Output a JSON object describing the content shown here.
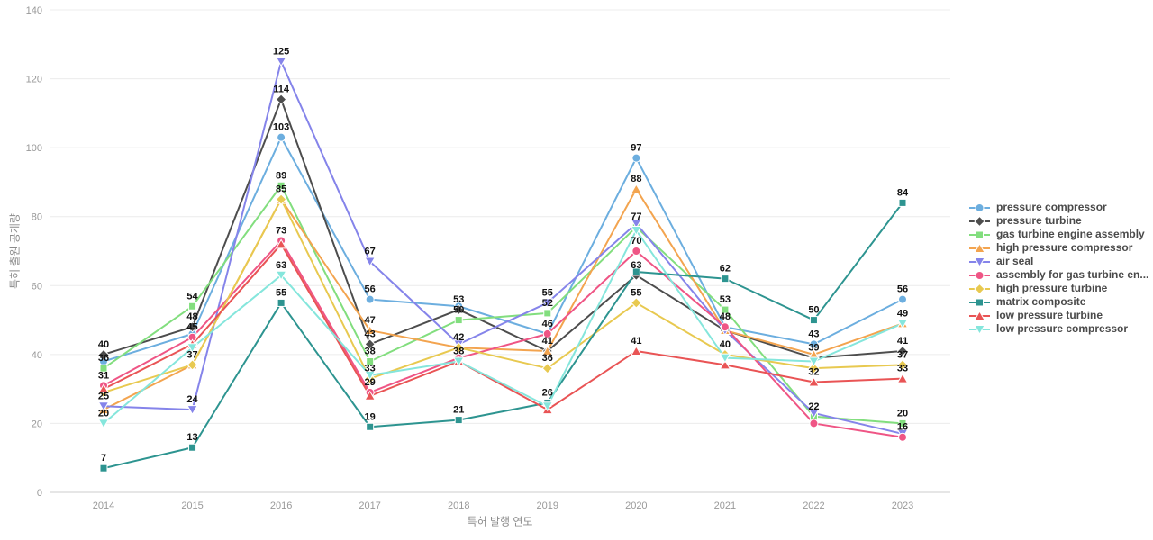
{
  "page": {
    "background": "#ffffff"
  },
  "chart_data": {
    "type": "line",
    "title": "",
    "xlabel": "특허 발행 연도",
    "ylabel": "특허 출원 공개량",
    "categories": [
      "2014",
      "2015",
      "2016",
      "2017",
      "2018",
      "2019",
      "2020",
      "2021",
      "2022",
      "2023"
    ],
    "ylim": [
      0,
      140
    ],
    "y_ticks": [
      0,
      20,
      40,
      60,
      80,
      100,
      120,
      140
    ],
    "grid": true,
    "legend_position": "right",
    "label_color": "#111111",
    "grid_color": "#ececec",
    "axis_line_color": "#cccccc",
    "tick_label_color": "#999999",
    "series": [
      {
        "name": "pressure compressor",
        "color": "#6CAEDF",
        "symbol": "circle",
        "values": [
          38,
          46,
          103,
          56,
          54,
          46,
          97,
          48,
          43,
          56
        ],
        "label_show": [
          0,
          0,
          1,
          1,
          0,
          0,
          1,
          0,
          1,
          1
        ]
      },
      {
        "name": "pressure turbine",
        "color": "#4D4D4D",
        "symbol": "diamond",
        "values": [
          40,
          48,
          114,
          43,
          53,
          41,
          63,
          47,
          39,
          41
        ],
        "label_show": [
          1,
          1,
          1,
          1,
          1,
          1,
          1,
          0,
          1,
          1
        ]
      },
      {
        "name": "gas turbine engine assembly",
        "color": "#82DE7E",
        "symbol": "square",
        "values": [
          36,
          54,
          89,
          38,
          50,
          52,
          77,
          53,
          22,
          20
        ],
        "label_show": [
          1,
          1,
          1,
          1,
          1,
          1,
          1,
          1,
          1,
          1
        ]
      },
      {
        "name": "high pressure compressor",
        "color": "#F3A44F",
        "symbol": "triangle",
        "values": [
          24,
          37,
          85,
          47,
          42,
          41,
          88,
          47,
          40,
          49
        ],
        "label_show": [
          0,
          0,
          0,
          1,
          0,
          0,
          1,
          0,
          0,
          0
        ]
      },
      {
        "name": "air seal",
        "color": "#8584EA",
        "symbol": "triangle-down",
        "values": [
          25,
          24,
          125,
          67,
          43,
          55,
          78,
          47,
          23,
          17
        ],
        "label_show": [
          1,
          1,
          1,
          1,
          0,
          1,
          0,
          0,
          0,
          0
        ]
      },
      {
        "name": "assembly for gas turbine en...",
        "color": "#EF5585",
        "symbol": "circle",
        "values": [
          31,
          45,
          73,
          29,
          39,
          46,
          70,
          48,
          20,
          16
        ],
        "label_show": [
          1,
          1,
          1,
          1,
          0,
          1,
          1,
          1,
          0,
          1
        ]
      },
      {
        "name": "high pressure turbine",
        "color": "#E8C950",
        "symbol": "diamond",
        "values": [
          29,
          37,
          85,
          33,
          42,
          36,
          55,
          40,
          36,
          37
        ],
        "label_show": [
          0,
          1,
          1,
          1,
          1,
          1,
          1,
          1,
          0,
          1
        ]
      },
      {
        "name": "matrix composite",
        "color": "#2D9490",
        "symbol": "square",
        "values": [
          7,
          13,
          55,
          19,
          21,
          26,
          64,
          62,
          50,
          84
        ],
        "label_show": [
          1,
          1,
          1,
          1,
          1,
          1,
          0,
          1,
          1,
          1
        ]
      },
      {
        "name": "low pressure turbine",
        "color": "#E95455",
        "symbol": "triangle",
        "values": [
          30,
          43,
          72,
          28,
          38,
          24,
          41,
          37,
          32,
          33
        ],
        "label_show": [
          0,
          0,
          0,
          0,
          0,
          0,
          1,
          0,
          1,
          1
        ]
      },
      {
        "name": "low pressure compressor",
        "color": "#85E6DC",
        "symbol": "triangle-down",
        "values": [
          20,
          42,
          63,
          34,
          38,
          25,
          76,
          39,
          38,
          49
        ],
        "label_show": [
          1,
          0,
          1,
          0,
          1,
          0,
          0,
          0,
          0,
          1
        ]
      }
    ]
  }
}
